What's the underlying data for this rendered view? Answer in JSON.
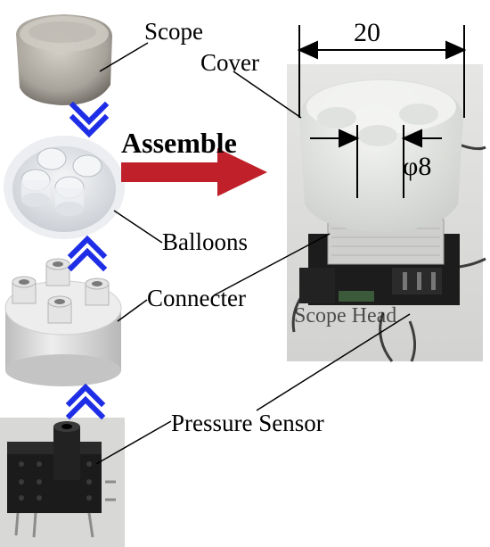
{
  "labels": {
    "scope": "Scope",
    "cover": "Cover",
    "assemble": "Assemble",
    "balloons": "Balloons",
    "connecter": "Connecter",
    "scope_head": "Scope Head",
    "pressure_sensor": "Pressure Sensor"
  },
  "dimensions": {
    "width": "20",
    "hole": "φ8"
  },
  "colors": {
    "chevron": "#1e2ee6",
    "assemble_arrow": "#c0202a",
    "photo_bg": "#d9d9d9",
    "cover_silicone": "#e8e9e6",
    "connecter_gray": "#dcdcdc",
    "sensor_black": "#1b1b1b"
  },
  "icons": [
    "chevron-up-icon",
    "chevron-down-icon",
    "right-arrow-icon"
  ]
}
